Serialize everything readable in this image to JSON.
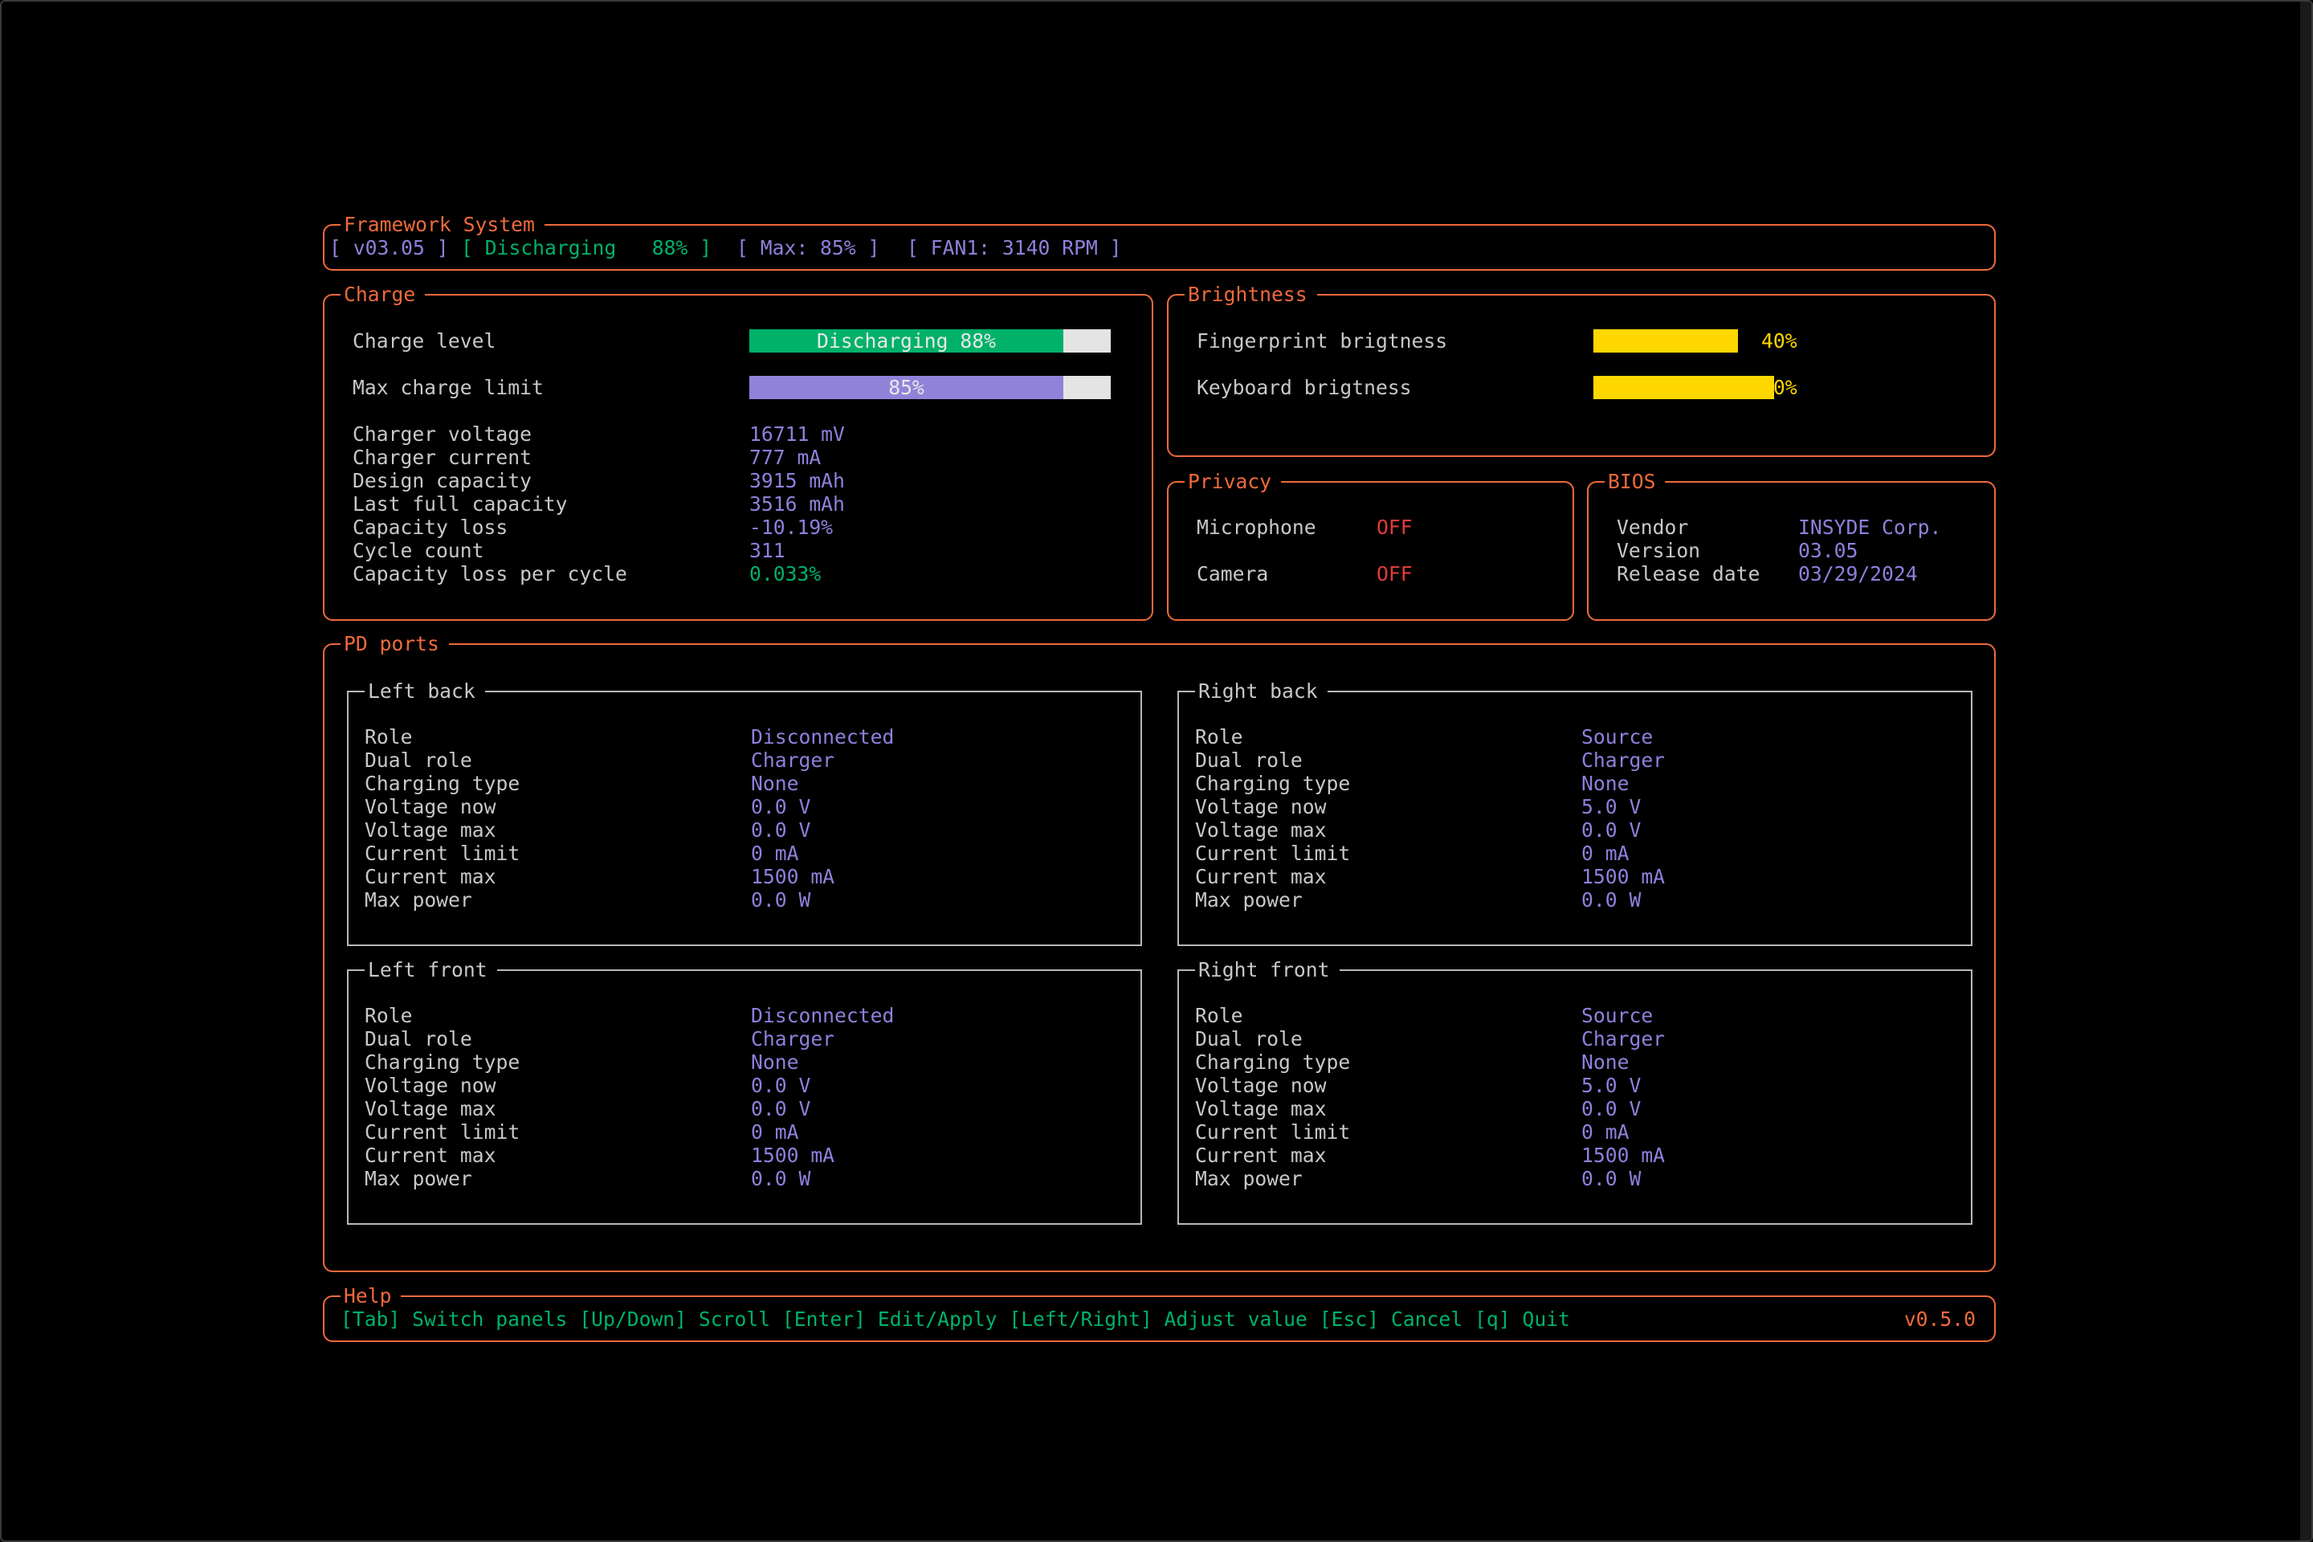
{
  "header": {
    "title": "Framework System",
    "bios_version": "[ v03.05 ]",
    "battery_status": "[ Discharging   88% ]",
    "max_charge": "[ Max: 85% ]",
    "fan": "[ FAN1: 3140 RPM ]"
  },
  "charge": {
    "title": "Charge",
    "charge_level": {
      "label": "Charge level",
      "bar_text": "Discharging 88%",
      "percent": 88
    },
    "max_charge_limit": {
      "label": "Max charge limit",
      "bar_text": "85%",
      "percent": 85
    },
    "rows": [
      {
        "label": "Charger voltage",
        "value": "16711 mV"
      },
      {
        "label": "Charger current",
        "value": "777 mA"
      },
      {
        "label": "Design capacity",
        "value": "3915 mAh"
      },
      {
        "label": "Last full capacity",
        "value": "3516 mAh"
      },
      {
        "label": "Capacity loss",
        "value": "-10.19%"
      },
      {
        "label": "Cycle count",
        "value": "311"
      },
      {
        "label": "Capacity loss per cycle",
        "value": "0.033%",
        "highlight": true
      }
    ]
  },
  "brightness": {
    "title": "Brightness",
    "fingerprint": {
      "label": "Fingerprint brigtness",
      "value": "40%",
      "percent": 40
    },
    "keyboard": {
      "label": "Keyboard brigtness",
      "value": "50%",
      "percent": 50
    }
  },
  "privacy": {
    "title": "Privacy",
    "microphone": {
      "label": "Microphone",
      "value": "OFF"
    },
    "camera": {
      "label": "Camera",
      "value": "OFF"
    }
  },
  "bios": {
    "title": "BIOS",
    "rows": [
      {
        "label": "Vendor",
        "value": "INSYDE Corp."
      },
      {
        "label": "Version",
        "value": "03.05"
      },
      {
        "label": "Release date",
        "value": "03/29/2024"
      }
    ]
  },
  "pd_ports": {
    "title": "PD ports",
    "ports": [
      {
        "name": "Left back",
        "rows": [
          {
            "label": "Role",
            "value": "Disconnected"
          },
          {
            "label": "Dual role",
            "value": "Charger"
          },
          {
            "label": "Charging type",
            "value": "None"
          },
          {
            "label": "Voltage now",
            "value": "0.0 V"
          },
          {
            "label": "Voltage max",
            "value": "0.0 V"
          },
          {
            "label": "Current limit",
            "value": "0 mA"
          },
          {
            "label": "Current max",
            "value": "1500 mA"
          },
          {
            "label": "Max power",
            "value": "0.0 W"
          }
        ]
      },
      {
        "name": "Right back",
        "rows": [
          {
            "label": "Role",
            "value": "Source"
          },
          {
            "label": "Dual role",
            "value": "Charger"
          },
          {
            "label": "Charging type",
            "value": "None"
          },
          {
            "label": "Voltage now",
            "value": "5.0 V"
          },
          {
            "label": "Voltage max",
            "value": "0.0 V"
          },
          {
            "label": "Current limit",
            "value": "0 mA"
          },
          {
            "label": "Current max",
            "value": "1500 mA"
          },
          {
            "label": "Max power",
            "value": "0.0 W"
          }
        ]
      },
      {
        "name": "Left front",
        "rows": [
          {
            "label": "Role",
            "value": "Disconnected"
          },
          {
            "label": "Dual role",
            "value": "Charger"
          },
          {
            "label": "Charging type",
            "value": "None"
          },
          {
            "label": "Voltage now",
            "value": "0.0 V"
          },
          {
            "label": "Voltage max",
            "value": "0.0 V"
          },
          {
            "label": "Current limit",
            "value": "0 mA"
          },
          {
            "label": "Current max",
            "value": "1500 mA"
          },
          {
            "label": "Max power",
            "value": "0.0 W"
          }
        ]
      },
      {
        "name": "Right front",
        "rows": [
          {
            "label": "Role",
            "value": "Source"
          },
          {
            "label": "Dual role",
            "value": "Charger"
          },
          {
            "label": "Charging type",
            "value": "None"
          },
          {
            "label": "Voltage now",
            "value": "5.0 V"
          },
          {
            "label": "Voltage max",
            "value": "0.0 V"
          },
          {
            "label": "Current limit",
            "value": "0 mA"
          },
          {
            "label": "Current max",
            "value": "1500 mA"
          },
          {
            "label": "Max power",
            "value": "0.0 W"
          }
        ]
      }
    ]
  },
  "help": {
    "title": "Help",
    "keys": "[Tab] Switch panels [Up/Down] Scroll [Enter] Edit/Apply [Left/Right] Adjust value [Esc] Cancel [q] Quit",
    "version": "v0.5.0"
  },
  "colors": {
    "border": "#f06a3c",
    "green": "#00b16a",
    "purple": "#8f80dc",
    "red": "#e23b3b",
    "yellow": "#ffd700",
    "track": "#e4e4e4"
  }
}
